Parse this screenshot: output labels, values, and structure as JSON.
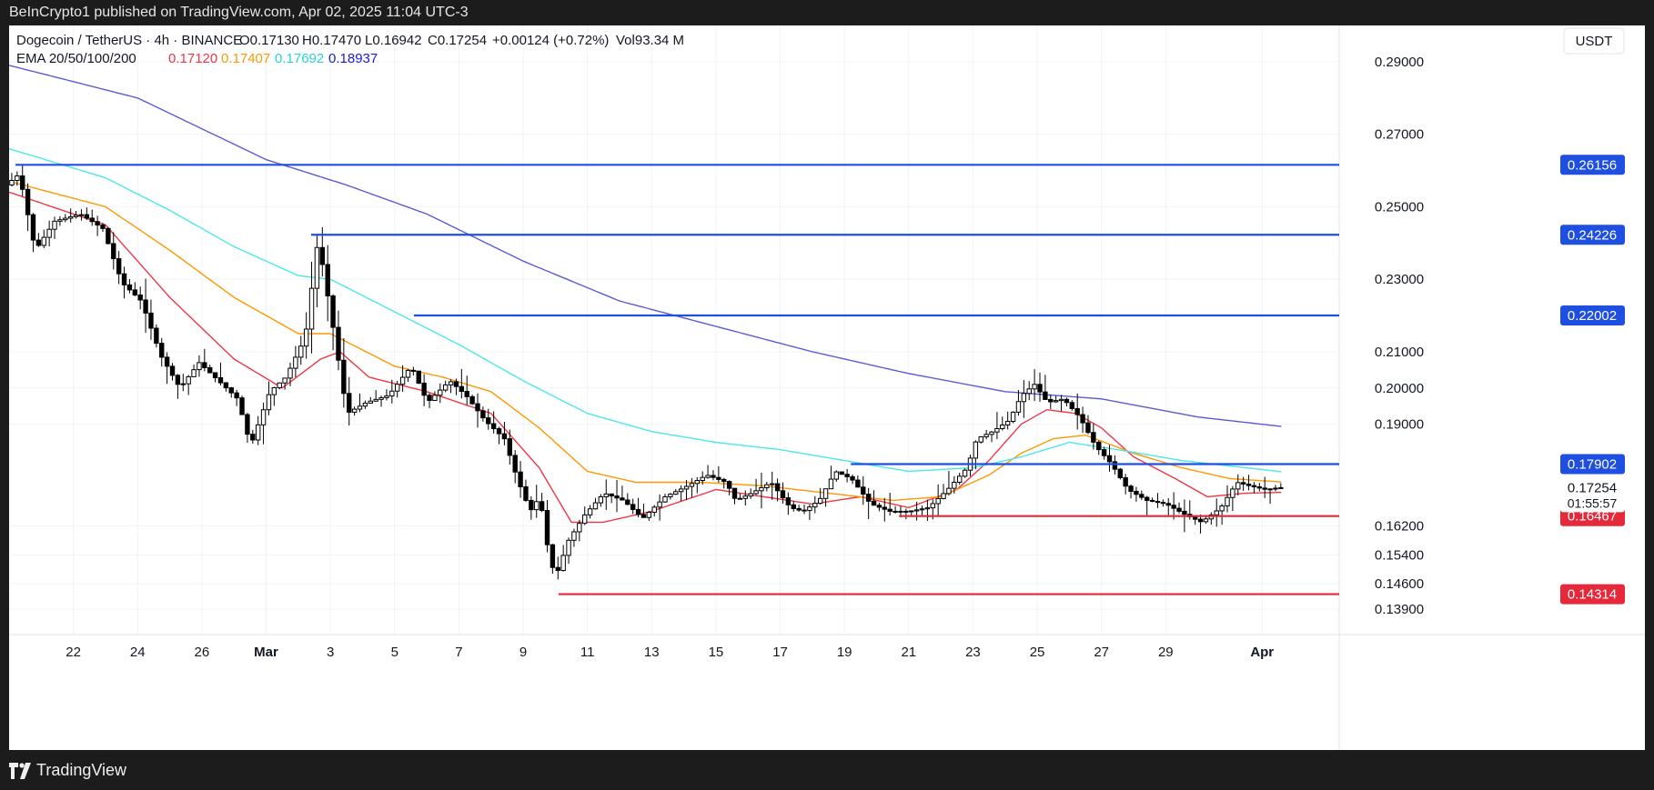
{
  "publisher_line": "BeInCrypto1 published on TradingView.com, Apr 02, 2025 11:04 UTC-3",
  "footer": {
    "brand": "TradingView"
  },
  "legend": {
    "symbol": "Dogecoin / TetherUS · 4h · BINANCE",
    "open": "O0.17130",
    "high": "H0.17470",
    "low": "L0.16942",
    "close": "C0.17254",
    "change": "+0.00124 (+0.72%)",
    "volume": "Vol93.34 M",
    "ema_label": "EMA 20/50/100/200",
    "ema_values": [
      "0.17120",
      "0.17407",
      "0.17692",
      "0.18937"
    ]
  },
  "currency_button": "USDT",
  "colors": {
    "ema20": "#f23645",
    "ema50": "#ff9800",
    "ema100": "#4de8e8",
    "ema200": "#5b5bd6",
    "resistance": "#1e4fe0",
    "support": "#e5283a",
    "up_candle": "#ffffff",
    "down_candle": "#000000",
    "close_label_bg": "#ffffff"
  },
  "chart_data": {
    "type": "candlestick",
    "timeframe": "4h",
    "y_range": [
      0.132,
      0.3
    ],
    "y_ticks": [
      "0.29000",
      "0.27000",
      "0.25000",
      "0.23000",
      "0.21000",
      "0.20000",
      "0.19000",
      "0.16200",
      "0.15400",
      "0.14600",
      "0.13900"
    ],
    "y_tick_values": [
      0.29,
      0.27,
      0.25,
      0.23,
      0.21,
      0.2,
      0.19,
      0.162,
      0.154,
      0.146,
      0.139
    ],
    "x_ticks": [
      "22",
      "24",
      "26",
      "Mar",
      "3",
      "5",
      "7",
      "9",
      "11",
      "13",
      "15",
      "17",
      "19",
      "21",
      "23",
      "25",
      "27",
      "29",
      "Apr"
    ],
    "x_tick_days": [
      2,
      4,
      6,
      8,
      10,
      12,
      14,
      16,
      18,
      20,
      22,
      24,
      26,
      28,
      30,
      32,
      34,
      36,
      39
    ],
    "x_range_days": [
      0,
      41.4
    ],
    "levels": [
      {
        "value": 0.26156,
        "label": "0.26156",
        "kind": "resistance",
        "start_day": 0.2
      },
      {
        "value": 0.24226,
        "label": "0.24226",
        "kind": "resistance",
        "start_day": 9.4
      },
      {
        "value": 0.22002,
        "label": "0.22002",
        "kind": "resistance",
        "start_day": 12.6
      },
      {
        "value": 0.17902,
        "label": "0.17902",
        "kind": "resistance",
        "start_day": 26.2
      },
      {
        "value": 0.16467,
        "label": "0.16467",
        "kind": "support",
        "start_day": 27.7
      },
      {
        "value": 0.14314,
        "label": "0.14314",
        "kind": "support",
        "start_day": 17.1
      }
    ],
    "current_price": {
      "value": 0.17254,
      "label": "0.17254",
      "countdown": "01:55:57"
    },
    "price_path": [
      [
        0.0,
        0.256
      ],
      [
        0.4,
        0.259
      ],
      [
        0.9,
        0.238
      ],
      [
        1.5,
        0.246
      ],
      [
        2.3,
        0.248
      ],
      [
        3.0,
        0.244
      ],
      [
        3.6,
        0.229
      ],
      [
        4.2,
        0.224
      ],
      [
        4.8,
        0.209
      ],
      [
        5.4,
        0.2
      ],
      [
        6.0,
        0.207
      ],
      [
        6.6,
        0.202
      ],
      [
        7.2,
        0.197
      ],
      [
        7.6,
        0.184
      ],
      [
        8.2,
        0.199
      ],
      [
        8.7,
        0.203
      ],
      [
        9.3,
        0.214
      ],
      [
        9.7,
        0.241
      ],
      [
        10.2,
        0.215
      ],
      [
        10.6,
        0.193
      ],
      [
        11.2,
        0.196
      ],
      [
        11.9,
        0.198
      ],
      [
        12.6,
        0.206
      ],
      [
        13.1,
        0.196
      ],
      [
        13.8,
        0.202
      ],
      [
        14.3,
        0.198
      ],
      [
        14.9,
        0.191
      ],
      [
        15.5,
        0.186
      ],
      [
        15.9,
        0.175
      ],
      [
        16.3,
        0.166
      ],
      [
        16.6,
        0.17
      ],
      [
        16.9,
        0.153
      ],
      [
        17.1,
        0.148
      ],
      [
        17.5,
        0.158
      ],
      [
        18.0,
        0.165
      ],
      [
        18.6,
        0.171
      ],
      [
        19.2,
        0.169
      ],
      [
        19.8,
        0.164
      ],
      [
        20.5,
        0.17
      ],
      [
        21.2,
        0.173
      ],
      [
        21.8,
        0.176
      ],
      [
        22.4,
        0.174
      ],
      [
        22.7,
        0.169
      ],
      [
        23.2,
        0.171
      ],
      [
        23.8,
        0.174
      ],
      [
        24.4,
        0.167
      ],
      [
        24.8,
        0.166
      ],
      [
        25.3,
        0.169
      ],
      [
        25.8,
        0.177
      ],
      [
        26.3,
        0.175
      ],
      [
        26.9,
        0.168
      ],
      [
        27.5,
        0.166
      ],
      [
        28.1,
        0.166
      ],
      [
        28.7,
        0.167
      ],
      [
        29.3,
        0.172
      ],
      [
        29.9,
        0.178
      ],
      [
        30.2,
        0.186
      ],
      [
        30.7,
        0.188
      ],
      [
        31.2,
        0.191
      ],
      [
        31.6,
        0.198
      ],
      [
        32.0,
        0.201
      ],
      [
        32.4,
        0.196
      ],
      [
        32.9,
        0.197
      ],
      [
        33.4,
        0.192
      ],
      [
        33.9,
        0.184
      ],
      [
        34.4,
        0.179
      ],
      [
        34.9,
        0.172
      ],
      [
        35.5,
        0.169
      ],
      [
        36.1,
        0.168
      ],
      [
        36.7,
        0.165
      ],
      [
        37.2,
        0.163
      ],
      [
        37.8,
        0.167
      ],
      [
        38.3,
        0.174
      ],
      [
        38.7,
        0.173
      ],
      [
        39.2,
        0.172
      ],
      [
        39.6,
        0.1725
      ]
    ],
    "series": [
      {
        "name": "EMA 20",
        "values": [
          [
            0.0,
            0.254
          ],
          [
            3.0,
            0.245
          ],
          [
            5.0,
            0.225
          ],
          [
            7.0,
            0.208
          ],
          [
            8.5,
            0.2
          ],
          [
            9.7,
            0.208
          ],
          [
            10.3,
            0.21
          ],
          [
            11.2,
            0.203
          ],
          [
            13.0,
            0.199
          ],
          [
            15.0,
            0.193
          ],
          [
            16.5,
            0.178
          ],
          [
            17.5,
            0.163
          ],
          [
            18.5,
            0.163
          ],
          [
            20.0,
            0.166
          ],
          [
            22.0,
            0.172
          ],
          [
            23.5,
            0.17
          ],
          [
            25.0,
            0.168
          ],
          [
            26.5,
            0.17
          ],
          [
            28.0,
            0.167
          ],
          [
            29.5,
            0.172
          ],
          [
            30.5,
            0.18
          ],
          [
            31.5,
            0.19
          ],
          [
            32.3,
            0.194
          ],
          [
            33.2,
            0.193
          ],
          [
            34.0,
            0.189
          ],
          [
            35.0,
            0.181
          ],
          [
            36.3,
            0.175
          ],
          [
            37.3,
            0.17
          ],
          [
            38.5,
            0.171
          ],
          [
            39.6,
            0.1712
          ]
        ]
      },
      {
        "name": "EMA 50",
        "values": [
          [
            0.0,
            0.257
          ],
          [
            3.0,
            0.25
          ],
          [
            5.0,
            0.238
          ],
          [
            7.0,
            0.225
          ],
          [
            9.0,
            0.215
          ],
          [
            10.0,
            0.215
          ],
          [
            12.0,
            0.206
          ],
          [
            13.5,
            0.203
          ],
          [
            15.0,
            0.199
          ],
          [
            16.5,
            0.189
          ],
          [
            18.0,
            0.177
          ],
          [
            19.5,
            0.174
          ],
          [
            21.5,
            0.174
          ],
          [
            23.5,
            0.173
          ],
          [
            25.5,
            0.171
          ],
          [
            27.5,
            0.169
          ],
          [
            29.0,
            0.17
          ],
          [
            30.5,
            0.176
          ],
          [
            31.5,
            0.182
          ],
          [
            32.5,
            0.186
          ],
          [
            33.5,
            0.187
          ],
          [
            35.0,
            0.182
          ],
          [
            36.5,
            0.178
          ],
          [
            38.0,
            0.175
          ],
          [
            39.6,
            0.1741
          ]
        ]
      },
      {
        "name": "EMA 100",
        "values": [
          [
            0.0,
            0.266
          ],
          [
            3.0,
            0.258
          ],
          [
            5.0,
            0.249
          ],
          [
            7.0,
            0.239
          ],
          [
            9.0,
            0.231
          ],
          [
            10.0,
            0.23
          ],
          [
            12.0,
            0.221
          ],
          [
            14.0,
            0.212
          ],
          [
            16.0,
            0.202
          ],
          [
            18.0,
            0.193
          ],
          [
            20.0,
            0.188
          ],
          [
            22.0,
            0.185
          ],
          [
            24.0,
            0.183
          ],
          [
            26.0,
            0.18
          ],
          [
            28.0,
            0.177
          ],
          [
            30.0,
            0.178
          ],
          [
            31.5,
            0.181
          ],
          [
            33.0,
            0.185
          ],
          [
            34.5,
            0.183
          ],
          [
            36.5,
            0.18
          ],
          [
            38.5,
            0.178
          ],
          [
            39.6,
            0.1769
          ]
        ]
      },
      {
        "name": "EMA 200",
        "values": [
          [
            0.0,
            0.289
          ],
          [
            4.0,
            0.28
          ],
          [
            8.0,
            0.263
          ],
          [
            10.5,
            0.256
          ],
          [
            13.0,
            0.248
          ],
          [
            16.0,
            0.235
          ],
          [
            19.0,
            0.224
          ],
          [
            22.0,
            0.217
          ],
          [
            25.0,
            0.21
          ],
          [
            28.0,
            0.204
          ],
          [
            31.0,
            0.199
          ],
          [
            34.0,
            0.197
          ],
          [
            37.0,
            0.192
          ],
          [
            39.6,
            0.1894
          ]
        ]
      }
    ]
  }
}
